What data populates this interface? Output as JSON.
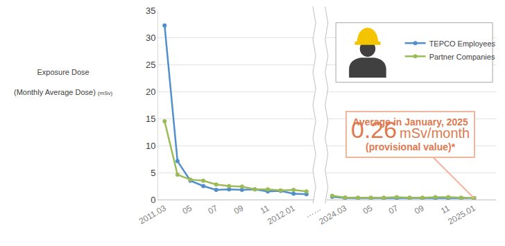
{
  "chart_data": {
    "type": "line",
    "y_label": [
      "Exposure Dose",
      "(Monthly Average Dose)",
      "(mSv)"
    ],
    "categories": [
      "2011.03",
      null,
      "05",
      null,
      "07",
      null,
      "09",
      null,
      "11",
      null,
      "2012.01",
      null,
      "……",
      null,
      "2024.03",
      null,
      "05",
      null,
      "07",
      null,
      "09",
      null,
      "11",
      null,
      "2025.01"
    ],
    "series": [
      {
        "name": "TEPCO Employees",
        "color": "#4f8fcc",
        "marker": "circle",
        "line_style": "solid",
        "values": [
          32.2,
          7.1,
          3.5,
          2.5,
          1.8,
          1.9,
          1.8,
          1.9,
          1.5,
          1.6,
          1.1,
          1.0,
          null,
          0.5,
          0.3,
          0.25,
          0.25,
          0.25,
          0.3,
          0.25,
          0.25,
          0.25,
          0.3,
          0.25,
          0.26
        ]
      },
      {
        "name": "Partner Companies",
        "color": "#9bbb59",
        "marker": "circle",
        "line_style": "solid",
        "values": [
          14.5,
          4.6,
          3.7,
          3.5,
          2.8,
          2.5,
          2.4,
          1.9,
          1.9,
          1.7,
          1.8,
          1.5,
          null,
          0.7,
          0.4,
          0.35,
          0.35,
          0.35,
          0.45,
          0.35,
          0.35,
          0.45,
          0.45,
          0.35,
          0.3
        ]
      }
    ],
    "xlim": [
      -0.5,
      25.7
    ],
    "ylim": [
      0,
      35
    ],
    "yticks": [
      0,
      5,
      10,
      15,
      20,
      25,
      30,
      35
    ],
    "grid": true,
    "legend": "upper right",
    "annotation": {
      "title": "Average in January, 2025",
      "value": 0.26,
      "unit": "mSv/month",
      "note": "(provisional value)*"
    }
  }
}
